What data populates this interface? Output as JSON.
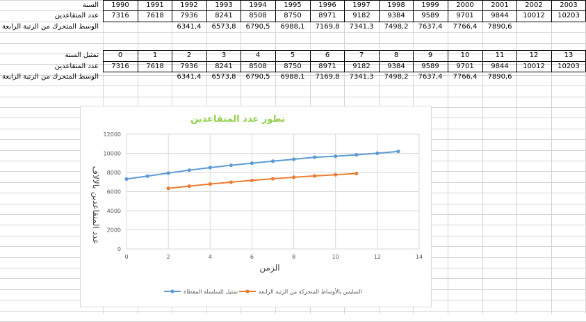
{
  "table1": {
    "year_label": "السنة",
    "retirees_label": "عدد المتقاعدين",
    "ma_label": "الوسط المتحرك من الرتبة الرابعة",
    "years": [
      "1990",
      "1991",
      "1992",
      "1993",
      "1994",
      "1995",
      "1996",
      "1997",
      "1998",
      "1999",
      "2000",
      "2001",
      "2002",
      "2003"
    ],
    "retirees": [
      "7316",
      "7618",
      "7936",
      "8241",
      "8508",
      "8750",
      "8971",
      "9182",
      "9384",
      "9589",
      "9701",
      "9844",
      "10012",
      "10203"
    ],
    "moving_avg": [
      "",
      "",
      "6341,4",
      "6573,8",
      "6790,5",
      "6988,1",
      "7169,8",
      "7341,3",
      "7498,2",
      "7637,4",
      "7766,4",
      "7890,6",
      "",
      ""
    ]
  },
  "table2": {
    "year_label": "تمثيل السنة",
    "retirees_label": "عدد المتقاعدين",
    "ma_label": "الوسط المتحرك من الرتبة الرابعة",
    "years": [
      "0",
      "1",
      "2",
      "3",
      "4",
      "5",
      "6",
      "7",
      "8",
      "9",
      "10",
      "11",
      "12",
      "13"
    ],
    "retirees": [
      "7316",
      "7618",
      "7936",
      "8241",
      "8508",
      "8750",
      "8971",
      "9182",
      "9384",
      "9589",
      "9701",
      "9844",
      "10012",
      "10203"
    ],
    "moving_avg": [
      "",
      "",
      "6341,4",
      "6573,8",
      "6790,5",
      "6988,1",
      "7169,8",
      "7341,3",
      "7498,2",
      "7637,4",
      "7766,4",
      "7890,6",
      "",
      ""
    ]
  },
  "chart_data": {
    "type": "line",
    "title": "تطور عدد المتقاعدين",
    "xlabel": "الزمن",
    "ylabel": "عدد المتقاعدين بالالاف",
    "xlim": [
      0,
      14
    ],
    "ylim": [
      0,
      12000
    ],
    "xticks": [
      0,
      2,
      4,
      6,
      8,
      10,
      12,
      14
    ],
    "yticks": [
      0,
      2000,
      4000,
      6000,
      8000,
      10000,
      12000
    ],
    "grid": true,
    "legend_position": "bottom",
    "series": [
      {
        "name": "تمثيل للسلسلة المعطاة",
        "color": "#5b9bd5",
        "x": [
          0,
          1,
          2,
          3,
          4,
          5,
          6,
          7,
          8,
          9,
          10,
          11,
          12,
          13
        ],
        "y": [
          7316,
          7618,
          7936,
          8241,
          8508,
          8750,
          8971,
          9182,
          9384,
          9589,
          9701,
          9844,
          10012,
          10203
        ]
      },
      {
        "name": "التمليس بالأوساط المتحركة من الرتبة الرابعة",
        "color": "#ed7d31",
        "x": [
          2,
          3,
          4,
          5,
          6,
          7,
          8,
          9,
          10,
          11
        ],
        "y": [
          6341.4,
          6573.8,
          6790.5,
          6988.1,
          7169.8,
          7341.3,
          7498.2,
          7637.4,
          7766.4,
          7890.6
        ]
      }
    ]
  }
}
